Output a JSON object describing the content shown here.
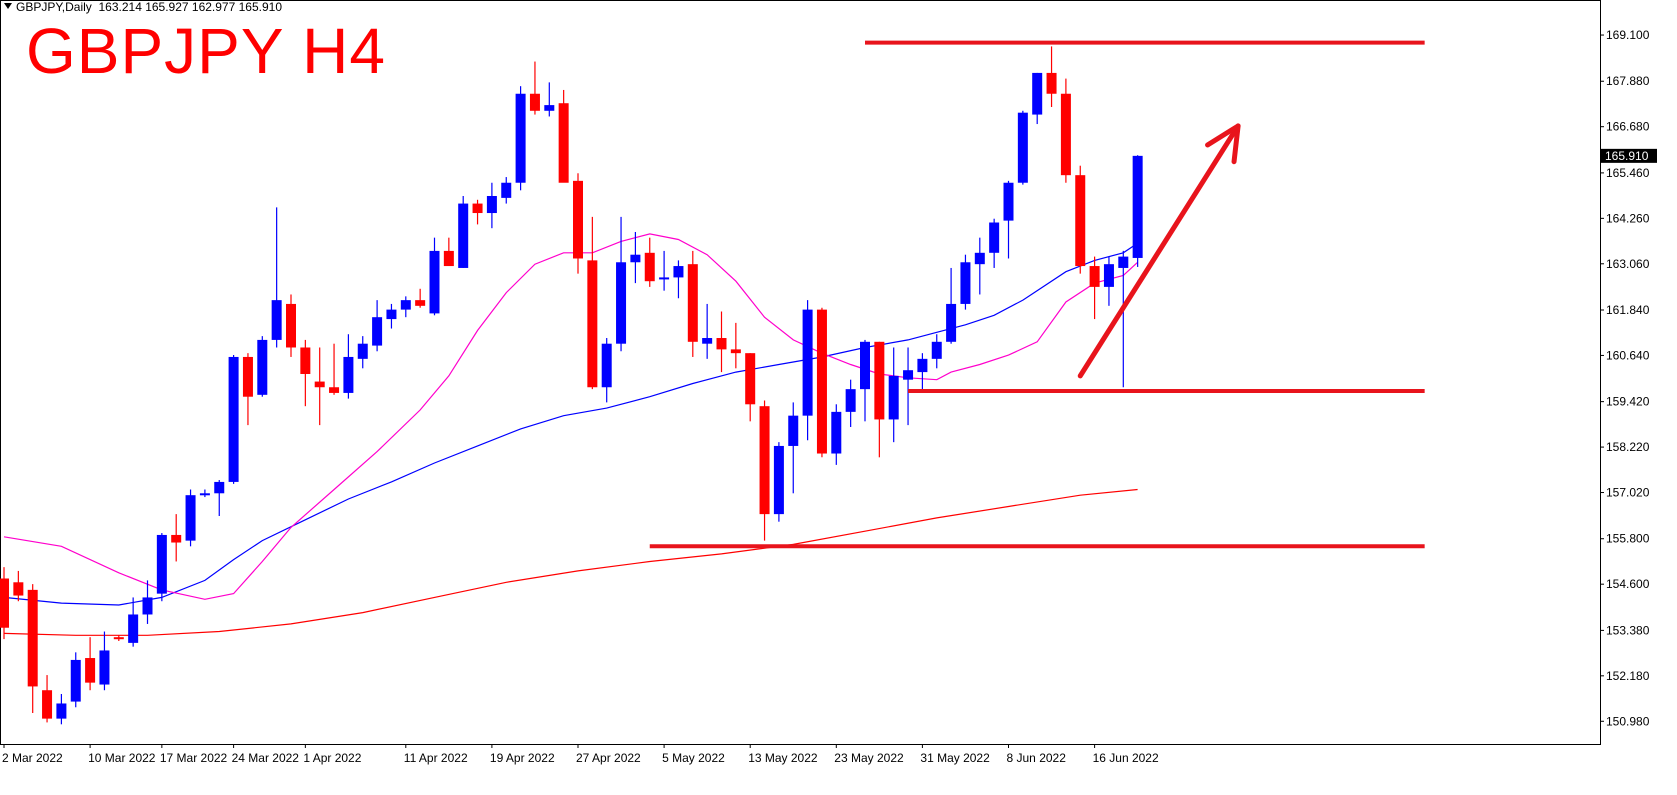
{
  "header": {
    "symbol_line": "GBPJPY,Daily",
    "ohlc_line": "163.214 165.927 162.977 165.910",
    "overlay_title": "GBPJPY H4"
  },
  "colors": {
    "bull": "#0000ff",
    "bear": "#ff0000",
    "ma_fast": "#ff00cc",
    "ma_mid": "#0000ff",
    "ma_slow": "#ff0000",
    "annotation": "#e8141c",
    "price_tag_bg": "#000000"
  },
  "chart_data": {
    "type": "candlestick",
    "title": "GBPJPY H4",
    "ylim": [
      150.38,
      169.55
    ],
    "y_ticks": [
      169.1,
      167.88,
      166.68,
      165.46,
      164.26,
      163.06,
      161.84,
      160.64,
      159.42,
      158.22,
      157.02,
      155.8,
      154.6,
      153.38,
      152.18,
      150.98
    ],
    "y_tick_labels": [
      "169.100",
      "167.880",
      "166.680",
      "165.460",
      "164.260",
      "163.060",
      "161.840",
      "160.640",
      "159.420",
      "158.220",
      "157.020",
      "155.800",
      "154.600",
      "153.380",
      "152.180",
      "150.980"
    ],
    "current_price": "165.910",
    "x_labels": [
      "2 Mar 2022",
      "10 Mar 2022",
      "17 Mar 2022",
      "24 Mar 2022",
      "1 Apr 2022",
      "11 Apr 2022",
      "19 Apr 2022",
      "27 Apr 2022",
      "5 May 2022",
      "13 May 2022",
      "23 May 2022",
      "31 May 2022",
      "8 Jun 2022",
      "16 Jun 2022"
    ],
    "x_label_index": [
      0,
      6,
      11,
      16,
      21,
      28,
      34,
      40,
      46,
      52,
      58,
      64,
      70,
      76
    ],
    "candles": [
      [
        154.75,
        155.05,
        153.15,
        153.45
      ],
      [
        154.65,
        154.95,
        154.15,
        154.3
      ],
      [
        154.45,
        154.6,
        151.2,
        151.9
      ],
      [
        151.8,
        152.2,
        150.95,
        151.05
      ],
      [
        151.05,
        151.7,
        150.9,
        151.45
      ],
      [
        151.5,
        152.8,
        151.35,
        152.6
      ],
      [
        152.65,
        153.2,
        151.8,
        152.0
      ],
      [
        151.95,
        153.35,
        151.8,
        152.85
      ],
      [
        153.2,
        153.25,
        153.1,
        153.15
      ],
      [
        153.05,
        154.25,
        152.95,
        153.8
      ],
      [
        153.8,
        154.7,
        153.55,
        154.25
      ],
      [
        154.35,
        155.95,
        154.15,
        155.9
      ],
      [
        155.9,
        156.45,
        155.2,
        155.7
      ],
      [
        155.75,
        157.1,
        155.6,
        156.95
      ],
      [
        156.95,
        157.1,
        156.9,
        157.0
      ],
      [
        157.0,
        157.35,
        156.4,
        157.3
      ],
      [
        157.3,
        160.65,
        157.25,
        160.6
      ],
      [
        160.6,
        160.7,
        158.8,
        159.55
      ],
      [
        159.6,
        161.15,
        159.55,
        161.05
      ],
      [
        161.05,
        164.55,
        160.85,
        162.1
      ],
      [
        162.0,
        162.25,
        160.6,
        160.85
      ],
      [
        160.85,
        161.05,
        159.3,
        160.15
      ],
      [
        159.95,
        160.85,
        158.8,
        159.8
      ],
      [
        159.8,
        160.95,
        159.6,
        159.65
      ],
      [
        159.65,
        161.2,
        159.5,
        160.6
      ],
      [
        160.55,
        161.15,
        160.3,
        160.95
      ],
      [
        160.9,
        162.1,
        160.75,
        161.65
      ],
      [
        161.6,
        162.0,
        161.35,
        161.85
      ],
      [
        161.85,
        162.2,
        161.65,
        162.1
      ],
      [
        162.1,
        162.4,
        161.9,
        161.95
      ],
      [
        161.75,
        163.75,
        161.7,
        163.4
      ],
      [
        163.4,
        163.75,
        163.05,
        163.0
      ],
      [
        162.95,
        164.85,
        162.95,
        164.65
      ],
      [
        164.65,
        164.75,
        164.1,
        164.4
      ],
      [
        164.4,
        165.2,
        164.0,
        164.85
      ],
      [
        164.8,
        165.35,
        164.65,
        165.2
      ],
      [
        165.2,
        167.75,
        165.0,
        167.55
      ],
      [
        167.55,
        168.4,
        167.0,
        167.1
      ],
      [
        167.1,
        167.85,
        166.95,
        167.25
      ],
      [
        167.3,
        167.65,
        165.35,
        165.2
      ],
      [
        165.25,
        165.45,
        162.8,
        163.2
      ],
      [
        163.15,
        164.3,
        159.75,
        159.8
      ],
      [
        159.8,
        161.1,
        159.4,
        160.95
      ],
      [
        160.95,
        164.3,
        160.75,
        163.1
      ],
      [
        163.1,
        163.9,
        162.55,
        163.3
      ],
      [
        163.35,
        163.75,
        162.45,
        162.6
      ],
      [
        162.65,
        163.4,
        162.35,
        162.7
      ],
      [
        162.7,
        163.15,
        162.15,
        163.0
      ],
      [
        163.05,
        163.4,
        160.6,
        161.0
      ],
      [
        160.95,
        162.0,
        160.55,
        161.1
      ],
      [
        161.1,
        161.8,
        160.2,
        160.8
      ],
      [
        160.8,
        161.5,
        160.3,
        160.7
      ],
      [
        160.7,
        160.7,
        158.9,
        159.35
      ],
      [
        159.3,
        159.45,
        155.75,
        156.45
      ],
      [
        156.45,
        158.35,
        156.25,
        158.25
      ],
      [
        158.25,
        159.4,
        157.0,
        159.05
      ],
      [
        159.05,
        162.1,
        158.4,
        161.85
      ],
      [
        161.85,
        161.9,
        157.95,
        158.05
      ],
      [
        158.05,
        159.35,
        157.75,
        159.15
      ],
      [
        159.15,
        160.0,
        158.75,
        159.75
      ],
      [
        159.75,
        161.05,
        158.9,
        161.0
      ],
      [
        161.0,
        161.0,
        157.95,
        158.95
      ],
      [
        158.95,
        160.85,
        158.35,
        160.1
      ],
      [
        160.0,
        160.85,
        158.8,
        160.25
      ],
      [
        160.2,
        160.7,
        159.7,
        160.55
      ],
      [
        160.55,
        161.2,
        160.3,
        161.0
      ],
      [
        161.0,
        162.95,
        160.95,
        162.0
      ],
      [
        162.0,
        163.3,
        161.85,
        163.1
      ],
      [
        163.05,
        163.75,
        162.25,
        163.35
      ],
      [
        163.35,
        164.25,
        162.95,
        164.15
      ],
      [
        164.2,
        165.25,
        163.2,
        165.2
      ],
      [
        165.2,
        167.1,
        165.15,
        167.05
      ],
      [
        167.0,
        168.1,
        166.75,
        168.1
      ],
      [
        168.1,
        168.8,
        167.2,
        167.55
      ],
      [
        167.55,
        167.95,
        165.2,
        165.4
      ],
      [
        165.4,
        165.65,
        162.8,
        163.0
      ],
      [
        163.0,
        163.25,
        161.6,
        162.45
      ],
      [
        162.45,
        163.25,
        161.95,
        163.05
      ],
      [
        162.95,
        163.4,
        159.8,
        163.25
      ],
      [
        163.214,
        165.927,
        162.977,
        165.91
      ]
    ],
    "ma_fast": [
      [
        0,
        155.85
      ],
      [
        4,
        155.6
      ],
      [
        8,
        154.9
      ],
      [
        11,
        154.45
      ],
      [
        14,
        154.2
      ],
      [
        16,
        154.35
      ],
      [
        18,
        155.2
      ],
      [
        20,
        156.1
      ],
      [
        23,
        157.1
      ],
      [
        26,
        158.1
      ],
      [
        29,
        159.2
      ],
      [
        31,
        160.1
      ],
      [
        33,
        161.3
      ],
      [
        35,
        162.3
      ],
      [
        37,
        163.05
      ],
      [
        39,
        163.35
      ],
      [
        41,
        163.35
      ],
      [
        43,
        163.65
      ],
      [
        45,
        163.85
      ],
      [
        47,
        163.7
      ],
      [
        49,
        163.3
      ],
      [
        51,
        162.6
      ],
      [
        53,
        161.65
      ],
      [
        55,
        161.05
      ],
      [
        57,
        160.7
      ],
      [
        59,
        160.4
      ],
      [
        61,
        160.15
      ],
      [
        63,
        160.05
      ],
      [
        65,
        160.0
      ],
      [
        66,
        160.2
      ],
      [
        68,
        160.4
      ],
      [
        70,
        160.65
      ],
      [
        72,
        161.0
      ],
      [
        74,
        162.05
      ],
      [
        76,
        162.55
      ],
      [
        78,
        162.75
      ],
      [
        79,
        163.1
      ]
    ],
    "ma_mid": [
      [
        0,
        154.25
      ],
      [
        4,
        154.1
      ],
      [
        8,
        154.05
      ],
      [
        11,
        154.25
      ],
      [
        14,
        154.7
      ],
      [
        16,
        155.25
      ],
      [
        18,
        155.75
      ],
      [
        21,
        156.3
      ],
      [
        24,
        156.85
      ],
      [
        27,
        157.3
      ],
      [
        30,
        157.8
      ],
      [
        33,
        158.25
      ],
      [
        36,
        158.7
      ],
      [
        39,
        159.05
      ],
      [
        42,
        159.25
      ],
      [
        45,
        159.55
      ],
      [
        48,
        159.9
      ],
      [
        51,
        160.2
      ],
      [
        54,
        160.4
      ],
      [
        57,
        160.6
      ],
      [
        60,
        160.85
      ],
      [
        63,
        161.05
      ],
      [
        65,
        161.25
      ],
      [
        67,
        161.45
      ],
      [
        69,
        161.7
      ],
      [
        71,
        162.1
      ],
      [
        74,
        162.85
      ],
      [
        76,
        163.15
      ],
      [
        78,
        163.35
      ],
      [
        79,
        163.6
      ]
    ],
    "ma_slow": [
      [
        0,
        153.3
      ],
      [
        5,
        153.25
      ],
      [
        10,
        153.25
      ],
      [
        15,
        153.35
      ],
      [
        20,
        153.55
      ],
      [
        25,
        153.85
      ],
      [
        30,
        154.25
      ],
      [
        35,
        154.65
      ],
      [
        40,
        154.95
      ],
      [
        45,
        155.2
      ],
      [
        50,
        155.4
      ],
      [
        55,
        155.65
      ],
      [
        60,
        156.0
      ],
      [
        65,
        156.35
      ],
      [
        70,
        156.65
      ],
      [
        75,
        156.95
      ],
      [
        79,
        157.1
      ]
    ],
    "support_resistance": [
      {
        "price": 168.9,
        "from": 60,
        "to": 99
      },
      {
        "price": 159.7,
        "from": 63,
        "to": 99
      },
      {
        "price": 155.6,
        "from": 45,
        "to": 99
      }
    ],
    "arrow": {
      "from": [
        75,
        160.1
      ],
      "to": [
        86,
        166.7
      ]
    }
  }
}
